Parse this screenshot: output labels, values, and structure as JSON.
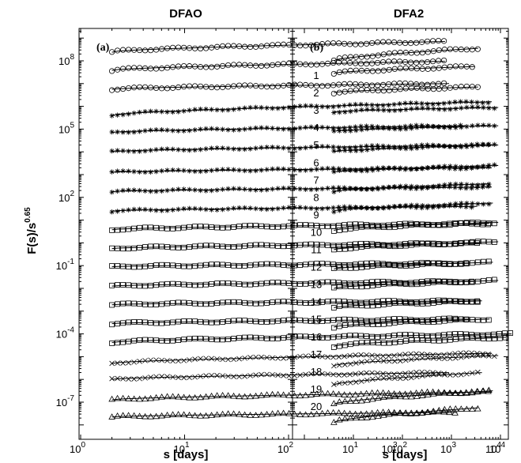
{
  "chart_data": [
    {
      "type": "scatter",
      "title": "DFAO",
      "panel_label": "(a)",
      "xlabel": "s [days]",
      "ylabel": "F(s)/s^0.65",
      "ylabel_main": "F(s)/s",
      "ylabel_exp": "0.65",
      "xscale": "log",
      "yscale": "log",
      "xlim": [
        1,
        15000
      ],
      "ylim": [
        1e-08,
        10000000000.0
      ],
      "x_ticks": [
        {
          "base": "10",
          "exp": "0"
        },
        {
          "base": "10",
          "exp": "1"
        },
        {
          "base": "10",
          "exp": "2"
        },
        {
          "base": "10",
          "exp": "3"
        },
        {
          "base": "10",
          "exp": "4"
        }
      ],
      "y_ticks": [
        {
          "base": "10",
          "exp": "8"
        },
        {
          "base": "10",
          "exp": "5"
        },
        {
          "base": "10",
          "exp": "2"
        },
        {
          "base": "10",
          "exp": "-1"
        },
        {
          "base": "10",
          "exp": "-4"
        },
        {
          "base": "10",
          "exp": "-7"
        }
      ],
      "series": [
        {
          "id": 1,
          "marker": "circle",
          "x_range": [
            2,
            3200
          ],
          "log_y_start": 8.38,
          "log_y_end": 8.85
        },
        {
          "id": 2,
          "marker": "circle",
          "x_range": [
            2,
            3200
          ],
          "log_y_start": 7.58,
          "log_y_end": 7.98
        },
        {
          "id": 3,
          "marker": "circle",
          "x_range": [
            2,
            3500
          ],
          "log_y_start": 6.75,
          "log_y_end": 7.0
        },
        {
          "id": 4,
          "marker": "star",
          "x_range": [
            2,
            9000
          ],
          "log_y_start": 5.6,
          "log_y_end": 6.2
        },
        {
          "id": 5,
          "marker": "star",
          "x_range": [
            2,
            5000
          ],
          "log_y_start": 4.85,
          "log_y_end": 5.15
        },
        {
          "id": 6,
          "marker": "star",
          "x_range": [
            2,
            9000
          ],
          "log_y_start": 4.0,
          "log_y_end": 4.3
        },
        {
          "id": 7,
          "marker": "star",
          "x_range": [
            2,
            9000
          ],
          "log_y_start": 3.1,
          "log_y_end": 3.3
        },
        {
          "id": 8,
          "marker": "star",
          "x_range": [
            2,
            9000
          ],
          "log_y_start": 2.25,
          "log_y_end": 2.45
        },
        {
          "id": 9,
          "marker": "star",
          "x_range": [
            2,
            6500
          ],
          "log_y_start": 1.4,
          "log_y_end": 1.6
        },
        {
          "id": 10,
          "marker": "square",
          "x_range": [
            2,
            8500
          ],
          "log_y_start": 0.58,
          "log_y_end": 0.85
        },
        {
          "id": 11,
          "marker": "square",
          "x_range": [
            2,
            7000
          ],
          "log_y_start": -0.25,
          "log_y_end": -0.02
        },
        {
          "id": 12,
          "marker": "square",
          "x_range": [
            2,
            5500
          ],
          "log_y_start": -1.05,
          "log_y_end": -0.9
        },
        {
          "id": 13,
          "marker": "square",
          "x_range": [
            2,
            6000
          ],
          "log_y_start": -1.9,
          "log_y_end": -1.7
        },
        {
          "id": 14,
          "marker": "square",
          "x_range": [
            2,
            7000
          ],
          "log_y_start": -2.72,
          "log_y_end": -2.55
        },
        {
          "id": 15,
          "marker": "square",
          "x_range": [
            2,
            5500
          ],
          "log_y_start": -3.55,
          "log_y_end": -3.35
        },
        {
          "id": 16,
          "marker": "square",
          "x_range": [
            2,
            14000
          ],
          "log_y_start": -4.38,
          "log_y_end": -4.0
        },
        {
          "id": 17,
          "marker": "cross",
          "x_range": [
            2,
            9000
          ],
          "log_y_start": -5.3,
          "log_y_end": -4.85
        },
        {
          "id": 18,
          "marker": "cross",
          "x_range": [
            2,
            3500
          ],
          "log_y_start": -6.0,
          "log_y_end": -5.7
        },
        {
          "id": 19,
          "marker": "triangle",
          "x_range": [
            2,
            9000
          ],
          "log_y_start": -6.9,
          "log_y_end": -6.55
        },
        {
          "id": 20,
          "marker": "triangle",
          "x_range": [
            2,
            4200
          ],
          "log_y_start": -7.65,
          "log_y_end": -7.45
        }
      ]
    },
    {
      "type": "scatter",
      "title": "DFA2",
      "panel_label": "(b)",
      "xlabel": "s [days]",
      "xscale": "log",
      "yscale": "log",
      "xlim": [
        1,
        15000
      ],
      "ylim": [
        1e-08,
        10000000000.0
      ],
      "x_ticks": [
        {
          "base": "10",
          "exp": "1"
        },
        {
          "base": "10",
          "exp": "2"
        },
        {
          "base": "10",
          "exp": "3"
        },
        {
          "base": "10",
          "exp": "4"
        }
      ],
      "row_labels": [
        "1",
        "2",
        "3",
        "4",
        "5",
        "6",
        "7",
        "8",
        "9",
        "10",
        "11",
        "12",
        "13",
        "14",
        "15",
        "16",
        "17",
        "18",
        "19",
        "20"
      ],
      "series": [
        {
          "id": 1,
          "marker": "circle",
          "x_range": [
            4,
            3500
          ],
          "log_y_start": 8.0,
          "log_y_end": 8.55
        },
        {
          "id": 2,
          "marker": "circle",
          "x_range": [
            4,
            3000
          ],
          "log_y_start": 7.45,
          "log_y_end": 7.75
        },
        {
          "id": 3,
          "marker": "circle",
          "x_range": [
            4,
            3500
          ],
          "log_y_start": 6.6,
          "log_y_end": 6.85
        },
        {
          "id": 4,
          "marker": "star",
          "x_range": [
            4,
            9000
          ],
          "log_y_start": 5.75,
          "log_y_end": 5.95
        },
        {
          "id": 5,
          "marker": "star",
          "x_range": [
            4,
            9000
          ],
          "log_y_start": 4.9,
          "log_y_end": 5.15
        },
        {
          "id": 6,
          "marker": "star",
          "x_range": [
            4,
            9000
          ],
          "log_y_start": 4.0,
          "log_y_end": 4.3
        },
        {
          "id": 7,
          "marker": "star",
          "x_range": [
            4,
            9000
          ],
          "log_y_start": 3.1,
          "log_y_end": 3.4
        },
        {
          "id": 8,
          "marker": "star",
          "x_range": [
            4,
            6000
          ],
          "log_y_start": 2.25,
          "log_y_end": 2.6
        },
        {
          "id": 9,
          "marker": "star",
          "x_range": [
            4,
            7000
          ],
          "log_y_start": 1.4,
          "log_y_end": 1.75
        },
        {
          "id": 10,
          "marker": "square",
          "x_range": [
            4,
            9000
          ],
          "log_y_start": 0.55,
          "log_y_end": 0.9
        },
        {
          "id": 11,
          "marker": "square",
          "x_range": [
            4,
            9000
          ],
          "log_y_start": -0.3,
          "log_y_end": 0.05
        },
        {
          "id": 12,
          "marker": "square",
          "x_range": [
            4,
            7000
          ],
          "log_y_start": -1.15,
          "log_y_end": -0.85
        },
        {
          "id": 13,
          "marker": "square",
          "x_range": [
            4,
            9000
          ],
          "log_y_start": -2.0,
          "log_y_end": -1.65
        },
        {
          "id": 14,
          "marker": "square",
          "x_range": [
            4,
            4200
          ],
          "log_y_start": -2.85,
          "log_y_end": -2.55
        },
        {
          "id": 15,
          "marker": "square",
          "x_range": [
            4,
            6000
          ],
          "log_y_start": -3.7,
          "log_y_end": -3.35
        },
        {
          "id": 16,
          "marker": "square",
          "x_range": [
            4,
            14000
          ],
          "log_y_start": -4.55,
          "log_y_end": -4.15
        },
        {
          "id": 17,
          "marker": "cross",
          "x_range": [
            4,
            9000
          ],
          "log_y_start": -5.4,
          "log_y_end": -4.95
        },
        {
          "id": 18,
          "marker": "cross",
          "x_range": [
            4,
            4200
          ],
          "log_y_start": -6.25,
          "log_y_end": -5.7
        },
        {
          "id": 19,
          "marker": "triangle",
          "x_range": [
            4,
            7000
          ],
          "log_y_start": -7.1,
          "log_y_end": -6.5
        },
        {
          "id": 20,
          "marker": "triangle",
          "x_range": [
            4,
            3500
          ],
          "log_y_start": -7.9,
          "log_y_end": -7.25
        }
      ]
    }
  ]
}
